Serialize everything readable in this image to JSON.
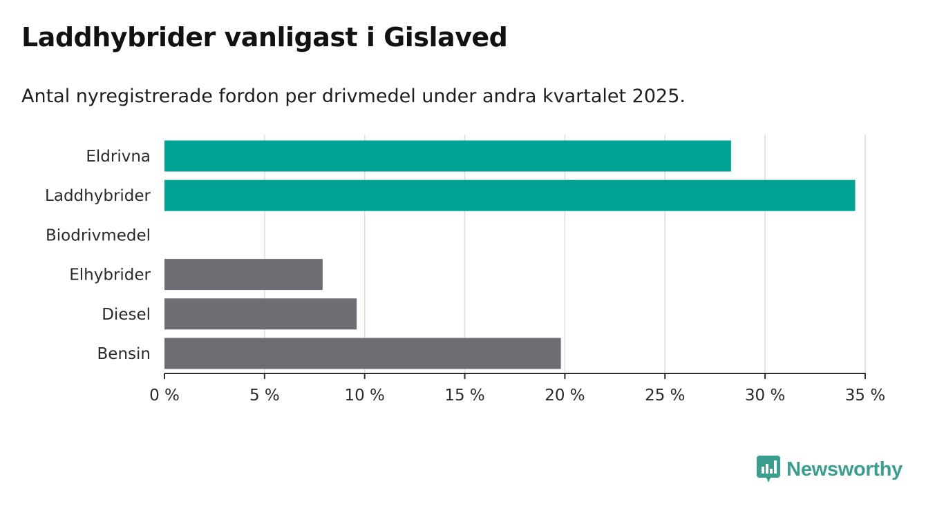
{
  "title": "Laddhybrider vanligast i Gislaved",
  "subtitle": "Antal nyregistrerade fordon per drivmedel under andra kvartalet 2025.",
  "brand": {
    "name": "Newsworthy",
    "icon": "newsworthy-chart-bubble-icon",
    "color": "#3a9e8f"
  },
  "chart_data": {
    "type": "bar",
    "orientation": "horizontal",
    "categories": [
      "Eldrivna",
      "Laddhybrider",
      "Biodrivmedel",
      "Elhybrider",
      "Diesel",
      "Bensin"
    ],
    "values": [
      28.3,
      34.5,
      0,
      7.9,
      9.6,
      19.8
    ],
    "colors": [
      "#00a396",
      "#00a396",
      "#6e6d73",
      "#6e6d73",
      "#6e6d73",
      "#6e6d73"
    ],
    "xlim": [
      0,
      35
    ],
    "x_ticks": [
      0,
      5,
      10,
      15,
      20,
      25,
      30,
      35
    ],
    "x_tick_labels": [
      "0 %",
      "5 %",
      "10 %",
      "15 %",
      "20 %",
      "25 %",
      "30 %",
      "35 %"
    ],
    "grid": "vertical",
    "legend": "none"
  }
}
